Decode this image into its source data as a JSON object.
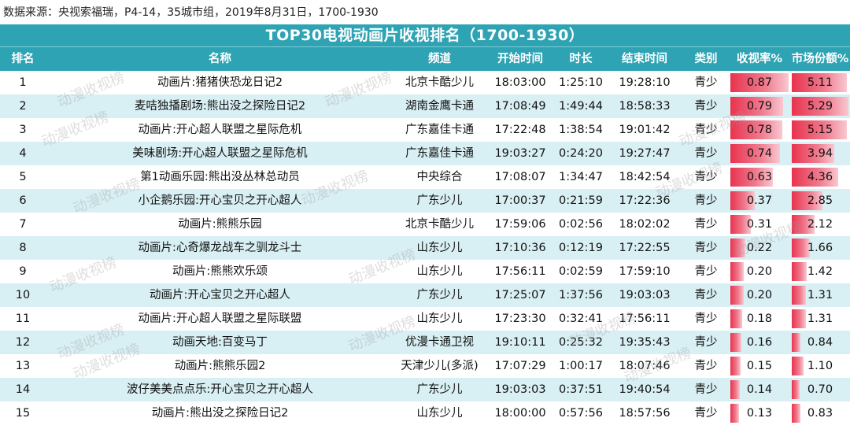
{
  "source": "数据来源：央视索福瑞，P4-14，35城市组，2019年8月31日，1700-1930",
  "title": "TOP30电视动画片收视排名（1700-1930）",
  "watermark": "动漫收视榜",
  "headers": {
    "rank": "排名",
    "name": "名称",
    "channel": "频道",
    "start": "开始时间",
    "duration": "时长",
    "end": "结束时间",
    "category": "类别",
    "rating": "收视率%",
    "share": "市场份额%"
  },
  "colors": {
    "header_bg": "#2ea3b3",
    "stripe": "#d8eff3",
    "bar": "#e8334f"
  },
  "chart_data": {
    "type": "table",
    "title": "TOP30电视动画片收视排名（1700-1930）",
    "rating_max": 0.87,
    "share_max": 5.29,
    "rows": [
      {
        "rank": "1",
        "name": "动画片:猪猪侠恐龙日记2",
        "channel": "北京卡酷少儿",
        "start": "18:03:00",
        "duration": "1:25:10",
        "end": "19:28:10",
        "category": "青少",
        "rating": "0.87",
        "share": "5.11"
      },
      {
        "rank": "2",
        "name": "麦咭独播剧场:熊出没之探险日记2",
        "channel": "湖南金鹰卡通",
        "start": "17:08:49",
        "duration": "1:49:44",
        "end": "18:58:33",
        "category": "青少",
        "rating": "0.79",
        "share": "5.29"
      },
      {
        "rank": "3",
        "name": "动画片:开心超人联盟之星际危机",
        "channel": "广东嘉佳卡通",
        "start": "17:22:48",
        "duration": "1:38:54",
        "end": "19:01:42",
        "category": "青少",
        "rating": "0.78",
        "share": "5.15"
      },
      {
        "rank": "4",
        "name": "美味剧场:开心超人联盟之星际危机",
        "channel": "广东嘉佳卡通",
        "start": "19:03:27",
        "duration": "0:24:20",
        "end": "19:27:47",
        "category": "青少",
        "rating": "0.74",
        "share": "3.94"
      },
      {
        "rank": "5",
        "name": "第1动画乐园:熊出没丛林总动员",
        "channel": "中央综合",
        "start": "17:08:07",
        "duration": "1:34:47",
        "end": "18:42:54",
        "category": "青少",
        "rating": "0.63",
        "share": "4.36"
      },
      {
        "rank": "6",
        "name": "小企鹅乐园:开心宝贝之开心超人",
        "channel": "广东少儿",
        "start": "17:00:37",
        "duration": "0:21:59",
        "end": "17:22:36",
        "category": "青少",
        "rating": "0.37",
        "share": "2.85"
      },
      {
        "rank": "7",
        "name": "动画片:熊熊乐园",
        "channel": "北京卡酷少儿",
        "start": "17:59:06",
        "duration": "0:02:56",
        "end": "18:02:02",
        "category": "青少",
        "rating": "0.31",
        "share": "2.12"
      },
      {
        "rank": "8",
        "name": "动画片:心奇爆龙战车之驯龙斗士",
        "channel": "山东少儿",
        "start": "17:10:36",
        "duration": "0:12:19",
        "end": "17:22:55",
        "category": "青少",
        "rating": "0.22",
        "share": "1.66"
      },
      {
        "rank": "9",
        "name": "动画片:熊熊欢乐颂",
        "channel": "山东少儿",
        "start": "17:56:11",
        "duration": "0:02:59",
        "end": "17:59:10",
        "category": "青少",
        "rating": "0.20",
        "share": "1.42"
      },
      {
        "rank": "10",
        "name": "动画片:开心宝贝之开心超人",
        "channel": "广东少儿",
        "start": "17:25:07",
        "duration": "1:37:56",
        "end": "19:03:03",
        "category": "青少",
        "rating": "0.20",
        "share": "1.31"
      },
      {
        "rank": "11",
        "name": "动画片:开心超人联盟之星际联盟",
        "channel": "山东少儿",
        "start": "17:23:30",
        "duration": "0:32:41",
        "end": "17:56:11",
        "category": "青少",
        "rating": "0.18",
        "share": "1.31"
      },
      {
        "rank": "12",
        "name": "动画天地:百变马丁",
        "channel": "优漫卡通卫视",
        "start": "19:10:11",
        "duration": "0:25:32",
        "end": "19:35:43",
        "category": "青少",
        "rating": "0.16",
        "share": "0.84"
      },
      {
        "rank": "13",
        "name": "动画片:熊熊乐园2",
        "channel": "天津少儿(多派)",
        "start": "17:07:29",
        "duration": "1:00:17",
        "end": "18:07:46",
        "category": "青少",
        "rating": "0.15",
        "share": "1.10"
      },
      {
        "rank": "14",
        "name": "波仔美美点点乐:开心宝贝之开心超人",
        "channel": "广东少儿",
        "start": "19:03:03",
        "duration": "0:37:51",
        "end": "19:40:54",
        "category": "青少",
        "rating": "0.14",
        "share": "0.70"
      },
      {
        "rank": "15",
        "name": "动画片:熊出没之探险日记2",
        "channel": "山东少儿",
        "start": "18:00:00",
        "duration": "0:57:56",
        "end": "18:57:56",
        "category": "青少",
        "rating": "0.13",
        "share": "0.83"
      }
    ]
  }
}
